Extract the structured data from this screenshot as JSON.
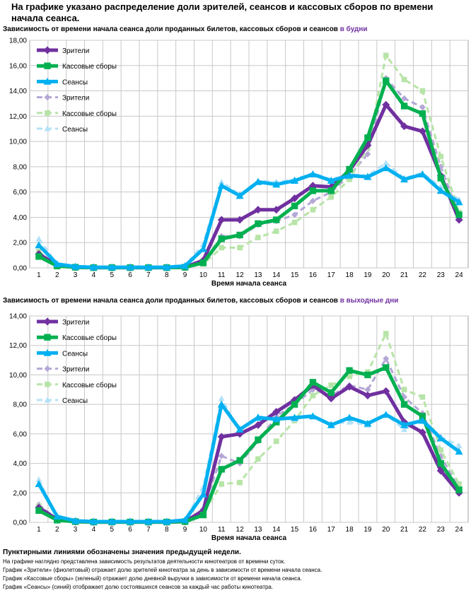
{
  "main_title": "На графике указано распределение доли зрителей, сеансов и кассовых сборов по времени начала сеанса.",
  "colors": {
    "viewers": "#7030a0",
    "revenue": "#00b050",
    "sessions": "#00b0f0",
    "viewers_prev": "#b4a7d6",
    "revenue_prev": "#b7e4a7",
    "sessions_prev": "#b4e1f7"
  },
  "chart_data": [
    {
      "type": "line",
      "title": "Зависимость от времени начала сеанса доли проданных билетов, кассовых сборов и сеансов",
      "title_accent": "в будни",
      "xlabel": "Время начала сеанса",
      "ylabel": "",
      "x": [
        1,
        2,
        3,
        4,
        5,
        6,
        7,
        8,
        9,
        10,
        11,
        12,
        13,
        14,
        15,
        16,
        17,
        18,
        19,
        20,
        21,
        22,
        23,
        24
      ],
      "ylim": [
        0,
        18
      ],
      "ytick_step": 2,
      "yticks": [
        "0,00",
        "2,00",
        "4,00",
        "6,00",
        "8,00",
        "10,00",
        "12,00",
        "14,00",
        "16,00",
        "18,00"
      ],
      "legend": [
        "Зрители",
        "Кассовые сборы",
        "Сеансы",
        "Зрители",
        "Кассовые сборы",
        "Сеансы"
      ],
      "series": [
        {
          "name": "Зрители",
          "style": "solid",
          "color_key": "viewers",
          "marker": "diamond",
          "values": [
            1.1,
            0.2,
            0.05,
            0.02,
            0.02,
            0.02,
            0.02,
            0.02,
            0.05,
            0.6,
            3.8,
            3.8,
            4.6,
            4.6,
            5.5,
            6.5,
            6.4,
            7.7,
            9.7,
            12.9,
            11.2,
            10.8,
            7.3,
            3.8
          ]
        },
        {
          "name": "Кассовые сборы",
          "style": "solid",
          "color_key": "revenue",
          "marker": "square",
          "values": [
            0.9,
            0.15,
            0.05,
            0.02,
            0.02,
            0.02,
            0.02,
            0.02,
            0.05,
            0.4,
            2.3,
            2.6,
            3.5,
            3.8,
            4.9,
            6.1,
            6.1,
            7.8,
            10.3,
            14.8,
            12.8,
            12.2,
            7.1,
            4.2
          ]
        },
        {
          "name": "Сеансы",
          "style": "solid",
          "color_key": "sessions",
          "marker": "triangle",
          "values": [
            1.8,
            0.3,
            0.1,
            0.05,
            0.05,
            0.05,
            0.05,
            0.05,
            0.15,
            1.5,
            6.5,
            5.7,
            6.8,
            6.6,
            6.9,
            7.4,
            6.9,
            7.3,
            7.2,
            7.9,
            7.0,
            7.4,
            6.1,
            5.2
          ]
        },
        {
          "name": "Зрители",
          "style": "dashed",
          "color_key": "viewers_prev",
          "marker": "diamond",
          "values": [
            1.0,
            0.2,
            0.05,
            0.02,
            0.02,
            0.02,
            0.02,
            0.02,
            0.05,
            0.4,
            2.5,
            2.5,
            3.4,
            3.7,
            4.2,
            5.3,
            6.0,
            7.3,
            9.0,
            15.0,
            13.4,
            12.7,
            8.0,
            4.2
          ]
        },
        {
          "name": "Кассовые сборы",
          "style": "dashed",
          "color_key": "revenue_prev",
          "marker": "square",
          "values": [
            1.3,
            0.15,
            0.05,
            0.02,
            0.02,
            0.02,
            0.02,
            0.02,
            0.05,
            0.3,
            1.6,
            1.6,
            2.4,
            2.9,
            3.6,
            4.6,
            5.6,
            7.0,
            9.5,
            16.8,
            14.9,
            14.0,
            8.8,
            4.4
          ]
        },
        {
          "name": "Сеансы",
          "style": "dashed",
          "color_key": "sessions_prev",
          "marker": "triangle",
          "values": [
            2.3,
            0.3,
            0.1,
            0.05,
            0.05,
            0.05,
            0.05,
            0.05,
            0.15,
            1.9,
            6.8,
            5.8,
            6.9,
            6.8,
            7.0,
            7.5,
            7.0,
            7.4,
            7.3,
            8.3,
            7.1,
            7.5,
            6.4,
            5.4
          ]
        }
      ]
    },
    {
      "type": "line",
      "title": "Зависимость от времени начала сеанса доли проданных билетов, кассовых сборов и сеансов",
      "title_accent": "в выходные дни",
      "xlabel": "Время начала сеанса",
      "ylabel": "",
      "x": [
        1,
        2,
        3,
        4,
        5,
        6,
        7,
        8,
        9,
        10,
        11,
        12,
        13,
        14,
        15,
        16,
        17,
        18,
        19,
        20,
        21,
        22,
        23,
        24
      ],
      "ylim": [
        0,
        14
      ],
      "ytick_step": 2,
      "yticks": [
        "0,00",
        "2,00",
        "4,00",
        "6,00",
        "8,00",
        "10,00",
        "12,00",
        "14,00"
      ],
      "legend": [
        "Зрители",
        "Кассовые сборы",
        "Сеансы",
        "Зрители",
        "Кассовые сборы",
        "Сеансы"
      ],
      "series": [
        {
          "name": "Зрители",
          "style": "solid",
          "color_key": "viewers",
          "marker": "diamond",
          "values": [
            1.0,
            0.2,
            0.05,
            0.02,
            0.02,
            0.02,
            0.02,
            0.02,
            0.05,
            0.8,
            5.8,
            6.0,
            6.6,
            7.5,
            8.3,
            9.3,
            8.4,
            9.2,
            8.6,
            8.9,
            6.8,
            6.1,
            3.5,
            2.0
          ]
        },
        {
          "name": "Кассовые сборы",
          "style": "solid",
          "color_key": "revenue",
          "marker": "square",
          "values": [
            0.8,
            0.15,
            0.05,
            0.02,
            0.02,
            0.02,
            0.02,
            0.02,
            0.05,
            0.5,
            3.6,
            4.2,
            5.6,
            6.8,
            8.0,
            9.5,
            8.8,
            10.3,
            10.0,
            10.5,
            8.0,
            7.2,
            4.0,
            2.2
          ]
        },
        {
          "name": "Сеансы",
          "style": "solid",
          "color_key": "sessions",
          "marker": "triangle",
          "values": [
            2.6,
            0.4,
            0.1,
            0.05,
            0.05,
            0.05,
            0.05,
            0.05,
            0.15,
            1.9,
            8.0,
            6.3,
            7.1,
            7.0,
            7.1,
            7.2,
            6.6,
            7.1,
            6.7,
            7.3,
            6.6,
            6.9,
            5.7,
            4.8
          ]
        },
        {
          "name": "Зрители",
          "style": "dashed",
          "color_key": "viewers_prev",
          "marker": "diamond",
          "values": [
            1.2,
            0.2,
            0.05,
            0.02,
            0.02,
            0.02,
            0.02,
            0.02,
            0.05,
            0.9,
            4.5,
            4.0,
            5.5,
            7.2,
            8.0,
            9.0,
            8.6,
            9.3,
            9.0,
            11.1,
            8.5,
            7.4,
            4.5,
            2.3
          ]
        },
        {
          "name": "Кассовые сборы",
          "style": "dashed",
          "color_key": "revenue_prev",
          "marker": "square",
          "values": [
            1.1,
            0.15,
            0.05,
            0.02,
            0.02,
            0.02,
            0.02,
            0.02,
            0.05,
            0.6,
            2.6,
            2.7,
            4.3,
            5.5,
            6.9,
            8.6,
            9.3,
            9.9,
            10.2,
            12.8,
            9.0,
            8.5,
            4.9,
            2.6
          ]
        },
        {
          "name": "Сеансы",
          "style": "dashed",
          "color_key": "sessions_prev",
          "marker": "triangle",
          "values": [
            2.9,
            0.4,
            0.1,
            0.05,
            0.05,
            0.05,
            0.05,
            0.05,
            0.15,
            2.4,
            8.4,
            6.2,
            7.2,
            7.0,
            7.0,
            7.2,
            6.7,
            6.8,
            6.6,
            7.3,
            6.3,
            7.0,
            5.8,
            5.2
          ]
        }
      ]
    }
  ],
  "notes": {
    "title": "Пунктирными линиями обозначены значения предыдущей недели.",
    "lines": [
      "На графике наглядно представлена зависимость результатов деятельности кинотеатров от времени суток.",
      "График «Зрители» (фиолетовый)  отражает долю зрителей кинотеатра за день в зависимости от времени  начала сеанса.",
      "График «Кассовые сборы» (зеленый) отражает долю дневной выручки в зависимости от времени начала сеанса.",
      "График «Сеансы» (синий) отображает долю состоявшихся сеансов  за каждый час работы кинотеатра."
    ]
  }
}
